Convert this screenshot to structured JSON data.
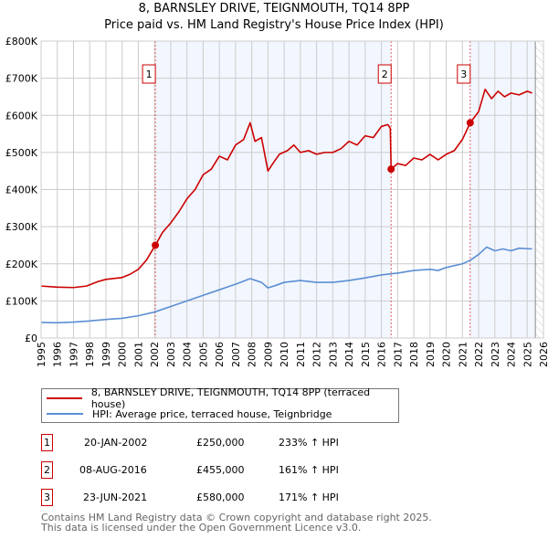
{
  "chart_data": {
    "type": "line",
    "title": "8, BARNSLEY DRIVE, TEIGNMOUTH, TQ14 8PP",
    "subtitle": "Price paid vs. HM Land Registry's House Price Index (HPI)",
    "xlim": [
      1995,
      2026
    ],
    "ylim": [
      0,
      800000
    ],
    "x_ticks": [
      "1995",
      "1996",
      "1997",
      "1998",
      "1999",
      "2000",
      "2001",
      "2002",
      "2003",
      "2004",
      "2005",
      "2006",
      "2007",
      "2008",
      "2009",
      "2010",
      "2011",
      "2012",
      "2013",
      "2014",
      "2015",
      "2016",
      "2017",
      "2018",
      "2019",
      "2020",
      "2021",
      "2022",
      "2023",
      "2024",
      "2025",
      "2026"
    ],
    "y_ticks": [
      {
        "value": 0,
        "label": "£0"
      },
      {
        "value": 100000,
        "label": "£100K"
      },
      {
        "value": 200000,
        "label": "£200K"
      },
      {
        "value": 300000,
        "label": "£300K"
      },
      {
        "value": 400000,
        "label": "£400K"
      },
      {
        "value": 500000,
        "label": "£500K"
      },
      {
        "value": 600000,
        "label": "£600K"
      },
      {
        "value": 700000,
        "label": "£700K"
      },
      {
        "value": 800000,
        "label": "£800K"
      }
    ],
    "grid": true,
    "series": [
      {
        "name": "8, BARNSLEY DRIVE, TEIGNMOUTH, TQ14 8PP (terraced house)",
        "color": "#cc0000",
        "points": [
          [
            1995,
            140000
          ],
          [
            1996,
            137000
          ],
          [
            1997,
            136000
          ],
          [
            1997.8,
            140000
          ],
          [
            1998.5,
            152000
          ],
          [
            1999,
            158000
          ],
          [
            2000,
            163000
          ],
          [
            2000.5,
            172000
          ],
          [
            2001,
            185000
          ],
          [
            2001.5,
            210000
          ],
          [
            2002.05,
            250000
          ],
          [
            2002.5,
            285000
          ],
          [
            2003,
            310000
          ],
          [
            2003.5,
            340000
          ],
          [
            2004,
            375000
          ],
          [
            2004.5,
            400000
          ],
          [
            2005,
            440000
          ],
          [
            2005.5,
            455000
          ],
          [
            2006,
            490000
          ],
          [
            2006.5,
            480000
          ],
          [
            2007,
            520000
          ],
          [
            2007.5,
            535000
          ],
          [
            2007.9,
            580000
          ],
          [
            2008.2,
            530000
          ],
          [
            2008.6,
            540000
          ],
          [
            2009,
            450000
          ],
          [
            2009.3,
            470000
          ],
          [
            2009.7,
            495000
          ],
          [
            2010.2,
            505000
          ],
          [
            2010.6,
            520000
          ],
          [
            2011,
            500000
          ],
          [
            2011.5,
            505000
          ],
          [
            2012,
            495000
          ],
          [
            2012.5,
            500000
          ],
          [
            2013,
            500000
          ],
          [
            2013.5,
            510000
          ],
          [
            2014,
            530000
          ],
          [
            2014.5,
            520000
          ],
          [
            2015,
            545000
          ],
          [
            2015.5,
            540000
          ],
          [
            2016,
            570000
          ],
          [
            2016.4,
            575000
          ],
          [
            2016.55,
            565000
          ],
          [
            2016.6,
            455000
          ],
          [
            2017,
            470000
          ],
          [
            2017.5,
            465000
          ],
          [
            2018,
            485000
          ],
          [
            2018.5,
            480000
          ],
          [
            2019,
            495000
          ],
          [
            2019.5,
            480000
          ],
          [
            2020,
            495000
          ],
          [
            2020.5,
            505000
          ],
          [
            2021,
            535000
          ],
          [
            2021.48,
            580000
          ],
          [
            2022,
            610000
          ],
          [
            2022.4,
            670000
          ],
          [
            2022.8,
            645000
          ],
          [
            2023.2,
            665000
          ],
          [
            2023.6,
            650000
          ],
          [
            2024,
            660000
          ],
          [
            2024.5,
            655000
          ],
          [
            2025,
            665000
          ],
          [
            2025.3,
            660000
          ]
        ]
      },
      {
        "name": "HPI: Average price, terraced house, Teignbridge",
        "color": "#5b8fd3",
        "points": [
          [
            1995,
            42000
          ],
          [
            1996,
            41000
          ],
          [
            1997,
            43000
          ],
          [
            1998,
            46000
          ],
          [
            1999,
            50000
          ],
          [
            2000,
            53000
          ],
          [
            2001,
            60000
          ],
          [
            2002,
            70000
          ],
          [
            2003,
            85000
          ],
          [
            2004,
            100000
          ],
          [
            2005,
            115000
          ],
          [
            2006,
            130000
          ],
          [
            2007,
            145000
          ],
          [
            2007.9,
            160000
          ],
          [
            2008.6,
            150000
          ],
          [
            2009,
            135000
          ],
          [
            2009.5,
            142000
          ],
          [
            2010,
            150000
          ],
          [
            2011,
            155000
          ],
          [
            2012,
            150000
          ],
          [
            2013,
            150000
          ],
          [
            2014,
            155000
          ],
          [
            2015,
            162000
          ],
          [
            2016,
            170000
          ],
          [
            2016.6,
            173000
          ],
          [
            2017,
            175000
          ],
          [
            2018,
            182000
          ],
          [
            2019,
            185000
          ],
          [
            2019.5,
            182000
          ],
          [
            2020,
            190000
          ],
          [
            2021,
            200000
          ],
          [
            2021.5,
            210000
          ],
          [
            2022,
            225000
          ],
          [
            2022.5,
            245000
          ],
          [
            2023,
            235000
          ],
          [
            2023.5,
            240000
          ],
          [
            2024,
            235000
          ],
          [
            2024.5,
            242000
          ],
          [
            2025.3,
            240000
          ]
        ]
      }
    ],
    "annotations": [
      {
        "label": "1",
        "x": 2002.05,
        "y": 250000
      },
      {
        "label": "2",
        "x": 2016.6,
        "y": 455000
      },
      {
        "label": "3",
        "x": 2021.48,
        "y": 580000
      }
    ],
    "shaded_ranges": [
      [
        2002.05,
        2016.6
      ],
      [
        2021.48,
        2025.5
      ]
    ],
    "hatched_from": 2025.5,
    "legend_position": "bottom"
  },
  "legend": {
    "property": "8, BARNSLEY DRIVE, TEIGNMOUTH, TQ14 8PP (terraced house)",
    "hpi": "HPI: Average price, terraced house, Teignbridge"
  },
  "transactions": [
    {
      "num": "1",
      "date": "20-JAN-2002",
      "price": "£250,000",
      "hpi": "233% ↑ HPI"
    },
    {
      "num": "2",
      "date": "08-AUG-2016",
      "price": "£455,000",
      "hpi": "161% ↑ HPI"
    },
    {
      "num": "3",
      "date": "23-JUN-2021",
      "price": "£580,000",
      "hpi": "171% ↑ HPI"
    }
  ],
  "footer": {
    "line1": "Contains HM Land Registry data © Crown copyright and database right 2025.",
    "line2": "This data is licensed under the Open Government Licence v3.0."
  }
}
